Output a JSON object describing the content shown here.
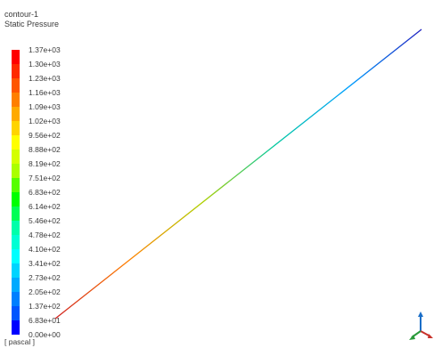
{
  "legend": {
    "contour_name": "contour-1",
    "variable": "Static Pressure",
    "unit": "[ pascal ]",
    "levels": [
      "1.37e+03",
      "1.30e+03",
      "1.23e+03",
      "1.16e+03",
      "1.09e+03",
      "1.02e+03",
      "9.56e+02",
      "8.88e+02",
      "8.19e+02",
      "7.51e+02",
      "6.83e+02",
      "6.14e+02",
      "5.46e+02",
      "4.78e+02",
      "4.10e+02",
      "3.41e+02",
      "2.73e+02",
      "2.05e+02",
      "1.37e+02",
      "6.83e+01",
      "0.00e+00"
    ],
    "colors": [
      "#ff0000",
      "#ff2a00",
      "#ff5500",
      "#ff7f00",
      "#ffaa00",
      "#ffd400",
      "#ffff00",
      "#d4ff00",
      "#aaff00",
      "#55ff00",
      "#00ff00",
      "#00ff55",
      "#00ffaa",
      "#00ffd4",
      "#00ffff",
      "#00d4ff",
      "#00aaff",
      "#007fff",
      "#0055ff",
      "#0000ff"
    ]
  },
  "contour_line": {
    "colors_low_to_high": [
      "#d02020",
      "#ff8000",
      "#b0d000",
      "#00c8a0",
      "#00a0ff",
      "#2020c0"
    ]
  },
  "axis_triad": {
    "icon": "axis-triad-icon",
    "axes": [
      "x",
      "y",
      "z"
    ]
  }
}
